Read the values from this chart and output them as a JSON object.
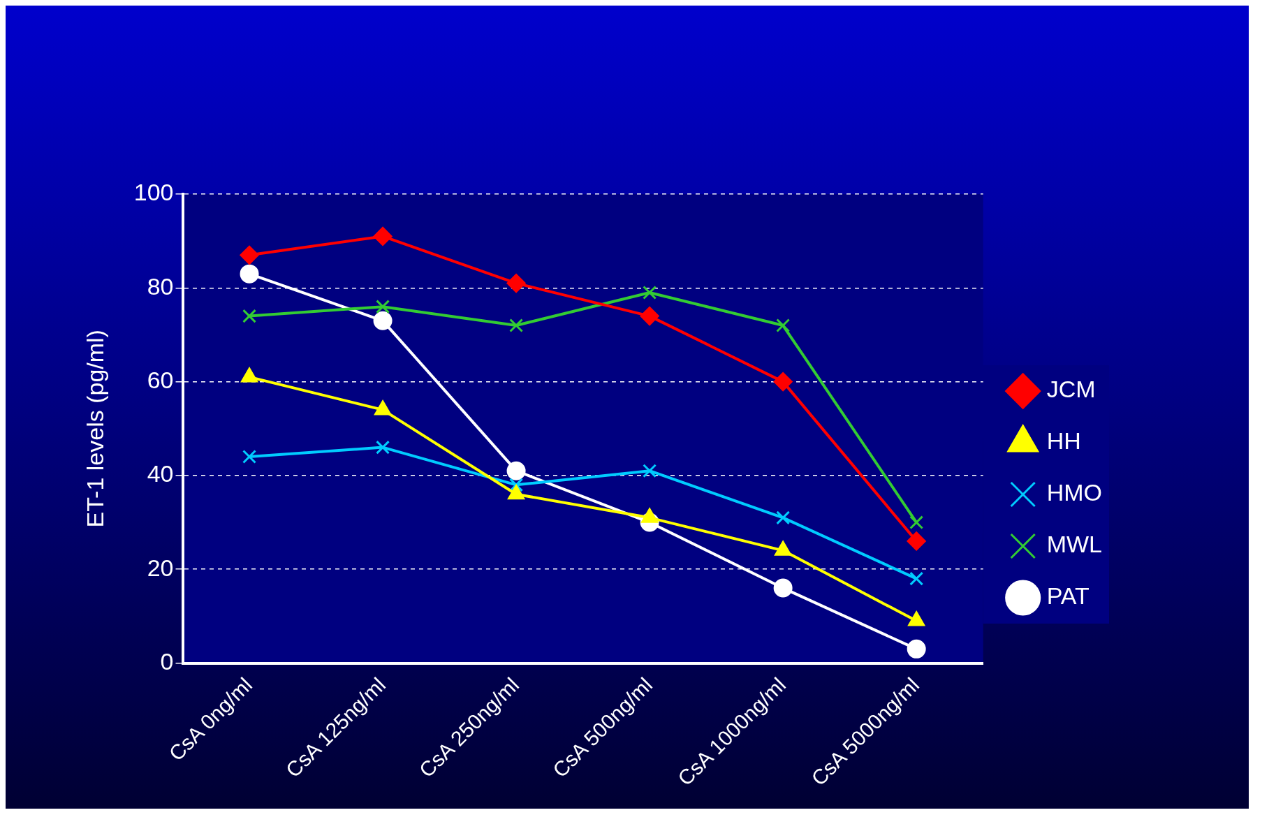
{
  "chart_data": {
    "type": "line",
    "ylabel": "ET-1 levels (pg/ml)",
    "categories": [
      "CsA 0ng/ml",
      "CsA 125ng/ml",
      "CsA 250ng/ml",
      "CsA 500ng/ml",
      "CsA 1000ng/ml",
      "CsA 5000ng/ml"
    ],
    "series": [
      {
        "name": "JCM",
        "color": "#ff0000",
        "marker": "diamond",
        "values": [
          87,
          91,
          81,
          74,
          60,
          26
        ]
      },
      {
        "name": "HH",
        "color": "#ffff00",
        "marker": "triangle",
        "values": [
          61,
          54,
          36,
          31,
          24,
          9
        ]
      },
      {
        "name": "HMO",
        "color": "#00ccff",
        "marker": "cross",
        "values": [
          44,
          46,
          38,
          41,
          31,
          18
        ]
      },
      {
        "name": "MWL",
        "color": "#33cc33",
        "marker": "cross",
        "values": [
          74,
          76,
          72,
          79,
          72,
          30
        ]
      },
      {
        "name": "PAT",
        "color": "#ffffff",
        "marker": "circle",
        "values": [
          83,
          73,
          41,
          30,
          16,
          3
        ]
      }
    ],
    "ylim": [
      0,
      100
    ],
    "yticks": [
      0,
      20,
      40,
      60,
      80,
      100
    ],
    "grid": "y",
    "legend": "right",
    "line_style": "solid"
  }
}
